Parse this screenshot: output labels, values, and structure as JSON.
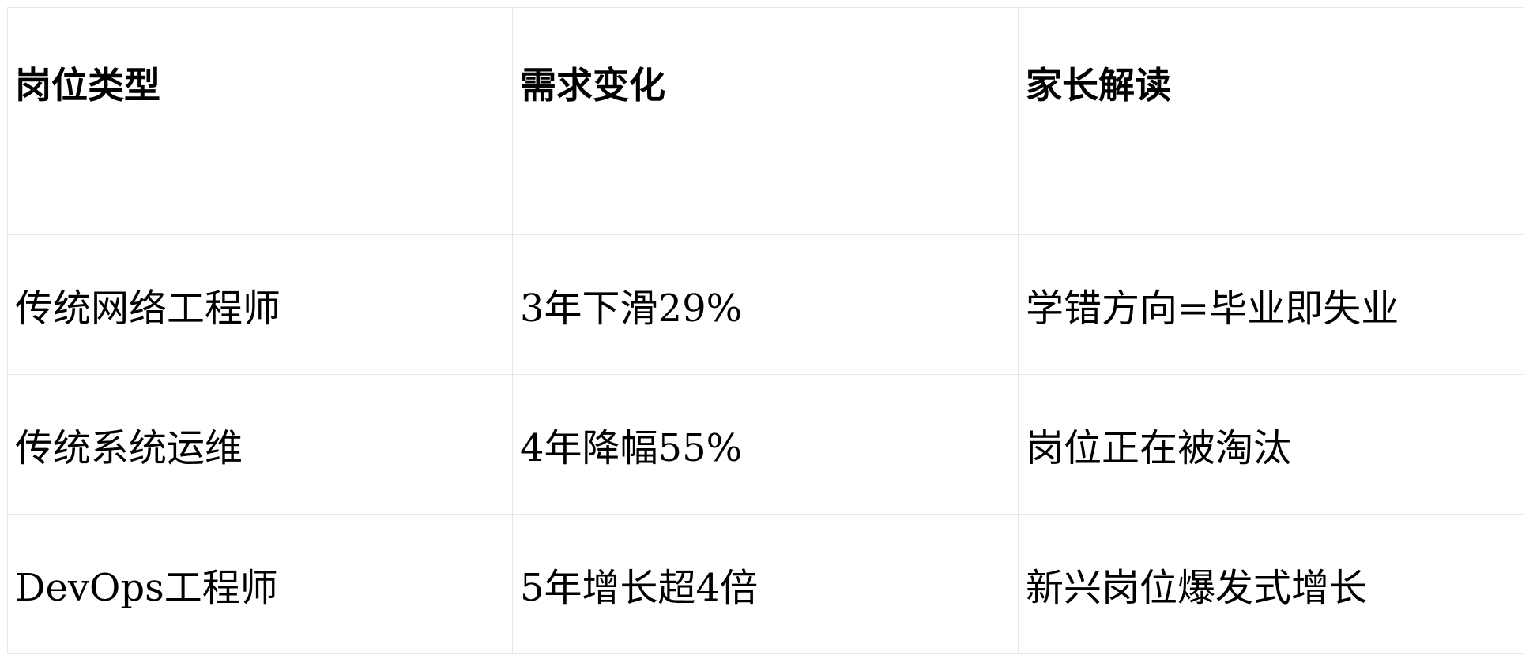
{
  "table": {
    "headers": [
      "岗位类型",
      "需求变化",
      "家长解读"
    ],
    "rows": [
      [
        "传统网络工程师",
        "3年下滑29%",
        "学错方向=毕业即失业"
      ],
      [
        "传统系统运维",
        "4年降幅55%",
        "岗位正在被淘汰"
      ],
      [
        "DevOps工程师",
        "5年增长超4倍",
        "新兴岗位爆发式增长"
      ]
    ]
  }
}
